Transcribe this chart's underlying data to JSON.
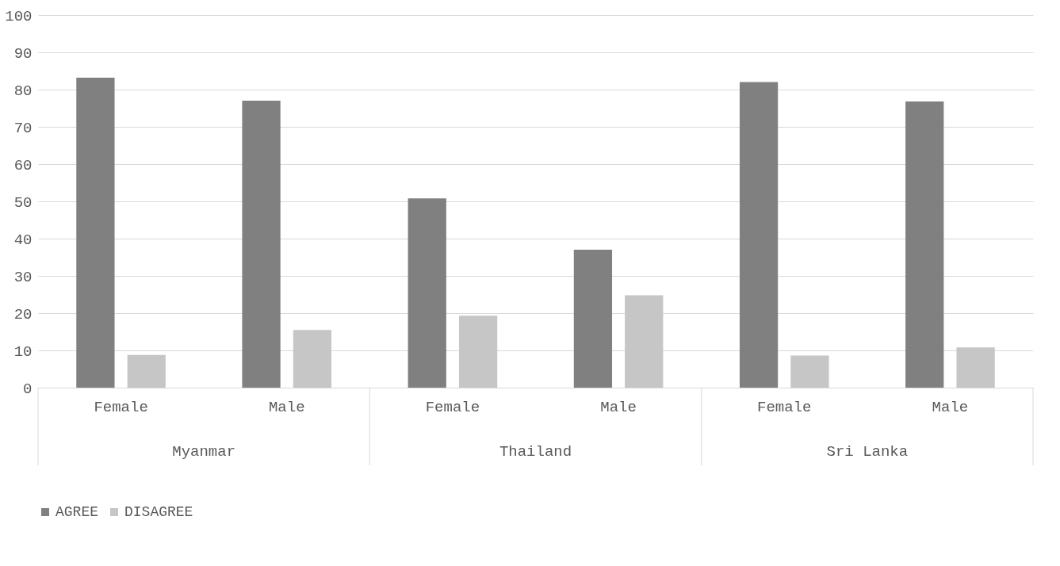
{
  "chart_data": {
    "type": "bar",
    "categories": [
      "Female",
      "Male",
      "Female",
      "Male",
      "Female",
      "Male"
    ],
    "series": [
      {
        "name": "AGREE",
        "color": "#808080",
        "values": [
          83.2,
          77.0,
          50.8,
          37.0,
          82.0,
          76.8
        ]
      },
      {
        "name": "DISAGREE",
        "color": "#c6c6c6",
        "values": [
          8.8,
          15.5,
          19.3,
          24.8,
          8.6,
          10.8
        ]
      }
    ],
    "annotations": [
      "Myanmar",
      "Thailand",
      "Sri Lanka"
    ],
    "ylim": [
      0,
      100
    ],
    "yticks": [
      0,
      10,
      20,
      30,
      40,
      50,
      60,
      70,
      80,
      90,
      100
    ],
    "grid": "y",
    "legend": "bottom"
  }
}
